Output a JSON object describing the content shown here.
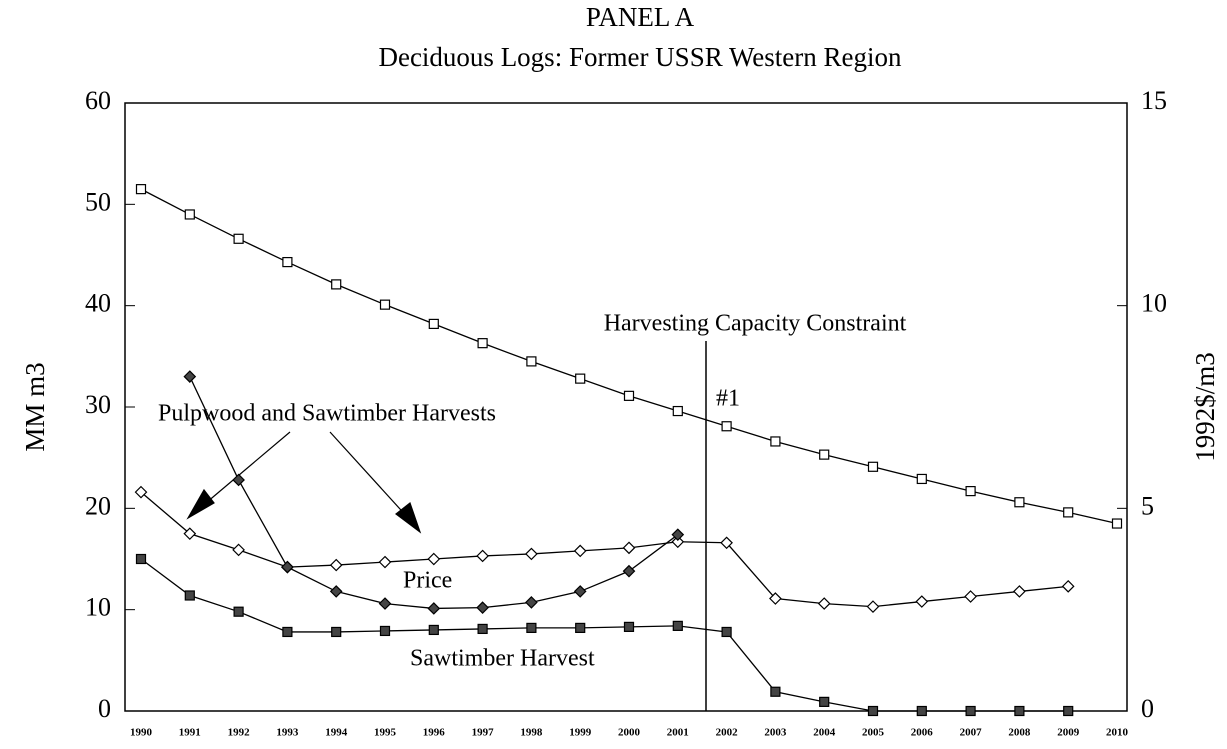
{
  "chart_data": {
    "type": "line",
    "title": "PANEL A",
    "subtitle": "Deciduous Logs:  Former USSR Western Region",
    "y_label": "MM m3",
    "y2_label": "1992$/m3",
    "annotations": [
      "Harvesting Capacity Constraint",
      "#1",
      "Pulpwood and Sawtimber Harvests",
      "Price",
      "Sawtimber Harvest"
    ],
    "categories": [
      "1990",
      "1991",
      "1992",
      "1993",
      "1994",
      "1995",
      "1996",
      "1997",
      "1998",
      "1999",
      "2000",
      "2001",
      "2002",
      "2003",
      "2004",
      "2005",
      "2006",
      "2007",
      "2008",
      "2009",
      "2010"
    ],
    "ylim": [
      0,
      60
    ],
    "yticks": [
      0,
      10,
      20,
      30,
      40,
      50,
      60
    ],
    "y2lim": [
      0,
      15
    ],
    "y2ticks": [
      0,
      5,
      10,
      15
    ],
    "series": [
      {
        "color": "#000000",
        "marker": "square-open",
        "values": [
          51.5,
          49,
          46.6,
          44.3,
          42.1,
          40.1,
          38.2,
          36.3,
          34.5,
          32.8,
          31.1,
          29.6,
          28.1,
          26.6,
          25.3,
          24.1,
          22.9,
          21.7,
          20.6,
          19.6,
          18.5
        ]
      },
      {
        "color": "#000000",
        "marker": "diamond-open",
        "values": [
          21.6,
          17.5,
          15.9,
          14.2,
          14.4,
          14.7,
          15.0,
          15.3,
          15.5,
          15.8,
          16.1,
          16.7,
          16.6,
          11.1,
          10.6,
          10.3,
          10.8,
          11.3,
          11.8,
          12.3,
          null
        ]
      },
      {
        "color": "#000000",
        "marker": "diamond-filled",
        "axis": "y2",
        "values": [
          null,
          8.25,
          5.7,
          3.55,
          2.95,
          2.65,
          2.53,
          2.55,
          2.68,
          2.95,
          3.45,
          4.35,
          null,
          null,
          null,
          null,
          null,
          null,
          null,
          null,
          null
        ]
      },
      {
        "color": "#000000",
        "marker": "square-filled",
        "values": [
          15.0,
          11.4,
          9.8,
          7.8,
          7.8,
          7.9,
          8.0,
          8.1,
          8.2,
          8.2,
          8.3,
          8.4,
          7.8,
          1.9,
          0.9,
          0,
          0,
          0,
          0,
          0,
          null
        ]
      }
    ]
  }
}
